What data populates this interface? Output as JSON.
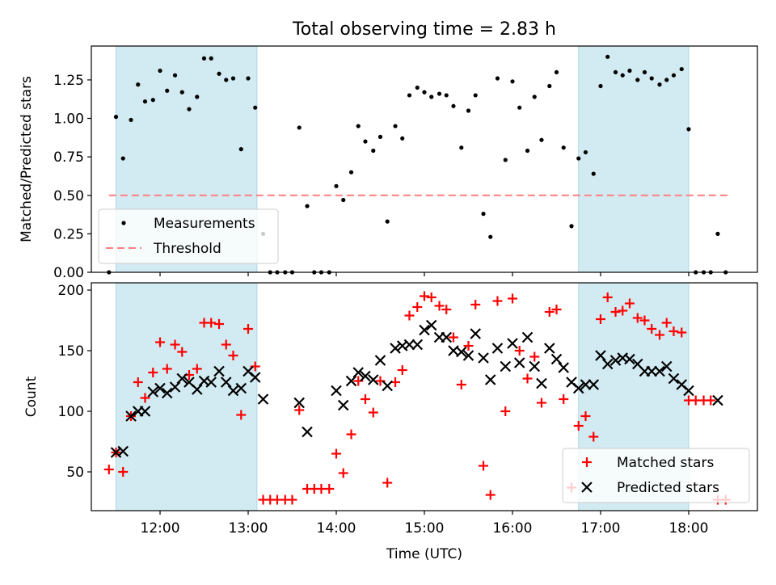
{
  "chart_data": [
    {
      "type": "scatter",
      "title": "Total observing time = 2.83 h",
      "ylabel": "Matched/Predicted stars",
      "xlabel": "",
      "ylim": [
        0,
        1.47
      ],
      "yticks": [
        "0.00",
        "0.25",
        "0.50",
        "0.75",
        "1.00",
        "1.25"
      ],
      "highlight_spans_hours": [
        [
          11.5,
          13.1
        ],
        [
          16.75,
          18.0
        ]
      ],
      "highlight_color": "#add8e6",
      "threshold": {
        "name": "Threshold",
        "value": 0.5,
        "x_range": [
          11.42,
          18.45
        ],
        "color": "#ff7f7f"
      },
      "legend": {
        "placement": "lower-left",
        "entries": [
          "Measurements",
          "Threshold"
        ]
      },
      "series": [
        {
          "name": "Measurements",
          "color": "#000000",
          "marker": "dot",
          "x": [
            11.42,
            11.5,
            11.58,
            11.67,
            11.75,
            11.83,
            11.92,
            12.0,
            12.08,
            12.17,
            12.25,
            12.33,
            12.42,
            12.5,
            12.58,
            12.67,
            12.75,
            12.83,
            12.92,
            13.0,
            13.08,
            13.17,
            13.25,
            13.33,
            13.42,
            13.5,
            13.58,
            13.67,
            13.75,
            13.83,
            13.92,
            14.0,
            14.08,
            14.17,
            14.25,
            14.33,
            14.42,
            14.5,
            14.58,
            14.67,
            14.75,
            14.83,
            14.92,
            15.0,
            15.08,
            15.17,
            15.25,
            15.33,
            15.42,
            15.5,
            15.58,
            15.67,
            15.75,
            15.83,
            15.92,
            16.0,
            16.08,
            16.17,
            16.25,
            16.33,
            16.42,
            16.5,
            16.58,
            16.67,
            16.75,
            16.83,
            16.92,
            17.0,
            17.08,
            17.17,
            17.25,
            17.33,
            17.42,
            17.5,
            17.58,
            17.67,
            17.75,
            17.83,
            17.92,
            18.0,
            18.08,
            18.17,
            18.25,
            18.33,
            18.42
          ],
          "y": [
            0.0,
            1.01,
            0.74,
            0.99,
            1.22,
            1.11,
            1.12,
            1.31,
            1.18,
            1.28,
            1.17,
            1.06,
            1.14,
            1.39,
            1.39,
            1.29,
            1.25,
            1.26,
            0.8,
            1.26,
            1.07,
            0.25,
            0.0,
            0.0,
            0.0,
            0.0,
            0.94,
            0.43,
            0.0,
            0.0,
            0.0,
            0.56,
            0.47,
            0.65,
            0.95,
            0.85,
            0.79,
            0.88,
            0.33,
            0.95,
            0.87,
            1.15,
            1.2,
            1.17,
            1.14,
            1.16,
            1.15,
            1.08,
            0.81,
            1.05,
            1.15,
            0.38,
            0.23,
            1.26,
            0.73,
            1.24,
            1.07,
            0.79,
            1.14,
            0.86,
            1.21,
            1.3,
            0.81,
            0.3,
            0.74,
            0.78,
            0.64,
            1.21,
            1.4,
            1.3,
            1.28,
            1.31,
            1.25,
            1.3,
            1.26,
            1.22,
            1.25,
            1.28,
            1.32,
            0.93,
            0.0,
            0.0,
            0.0,
            0.25,
            0.0
          ]
        }
      ]
    },
    {
      "type": "scatter",
      "title": "",
      "ylabel": "Count",
      "xlabel": "Time (UTC)",
      "ylim": [
        18,
        206
      ],
      "yticks": [
        "50",
        "100",
        "150",
        "200"
      ],
      "xticks": [
        "12:00",
        "13:00",
        "14:00",
        "15:00",
        "16:00",
        "17:00",
        "18:00"
      ],
      "xtick_hours": [
        12,
        13,
        14,
        15,
        16,
        17,
        18
      ],
      "xlim_hours": [
        11.22,
        18.78
      ],
      "highlight_spans_hours": [
        [
          11.5,
          13.1
        ],
        [
          16.75,
          18.0
        ]
      ],
      "highlight_color": "#add8e6",
      "legend": {
        "placement": "lower-right",
        "entries": [
          "Matched stars",
          "Predicted stars"
        ]
      },
      "series": [
        {
          "name": "Matched stars",
          "color": "#ff0000",
          "marker": "plus",
          "x": [
            11.42,
            11.5,
            11.58,
            11.67,
            11.75,
            11.83,
            11.92,
            12.0,
            12.08,
            12.17,
            12.25,
            12.33,
            12.42,
            12.5,
            12.58,
            12.67,
            12.75,
            12.83,
            12.92,
            13.0,
            13.08,
            13.17,
            13.25,
            13.33,
            13.42,
            13.5,
            13.58,
            13.67,
            13.75,
            13.83,
            13.92,
            14.0,
            14.08,
            14.17,
            14.25,
            14.33,
            14.42,
            14.5,
            14.58,
            14.67,
            14.75,
            14.83,
            14.92,
            15.0,
            15.08,
            15.17,
            15.25,
            15.33,
            15.42,
            15.5,
            15.58,
            15.67,
            15.75,
            15.83,
            15.92,
            16.0,
            16.08,
            16.17,
            16.25,
            16.33,
            16.42,
            16.5,
            16.58,
            16.67,
            16.75,
            16.83,
            16.92,
            17.0,
            17.08,
            17.17,
            17.25,
            17.33,
            17.42,
            17.5,
            17.58,
            17.67,
            17.75,
            17.83,
            17.92,
            18.0,
            18.08,
            18.17,
            18.25,
            18.33,
            18.42
          ],
          "y": [
            52,
            66,
            50,
            96,
            124,
            111,
            132,
            157,
            135,
            155,
            149,
            130,
            135,
            173,
            173,
            172,
            155,
            146,
            97,
            168,
            137,
            27,
            27,
            27,
            27,
            27,
            101,
            36,
            36,
            36,
            36,
            65,
            49,
            81,
            125,
            110,
            99,
            125,
            41,
            124,
            134,
            179,
            186,
            195,
            194,
            187,
            184,
            161,
            122,
            154,
            188,
            55,
            31,
            191,
            100,
            193,
            150,
            127,
            145,
            107,
            182,
            184,
            110,
            37,
            88,
            96,
            79,
            176,
            194,
            182,
            183,
            189,
            177,
            175,
            168,
            163,
            173,
            166,
            165,
            109,
            109,
            109,
            109,
            27,
            27
          ]
        },
        {
          "name": "Predicted stars",
          "color": "#000000",
          "marker": "x",
          "x": [
            11.5,
            11.58,
            11.67,
            11.75,
            11.83,
            11.92,
            12.0,
            12.08,
            12.17,
            12.25,
            12.33,
            12.42,
            12.5,
            12.58,
            12.67,
            12.75,
            12.83,
            12.92,
            13.0,
            13.08,
            13.17,
            13.58,
            13.67,
            14.0,
            14.08,
            14.17,
            14.25,
            14.33,
            14.42,
            14.5,
            14.58,
            14.67,
            14.75,
            14.83,
            14.92,
            15.0,
            15.08,
            15.17,
            15.25,
            15.33,
            15.42,
            15.5,
            15.58,
            15.67,
            15.75,
            15.83,
            15.92,
            16.0,
            16.08,
            16.17,
            16.25,
            16.33,
            16.42,
            16.5,
            16.58,
            16.67,
            16.75,
            16.83,
            16.92,
            17.0,
            17.08,
            17.17,
            17.25,
            17.33,
            17.42,
            17.5,
            17.58,
            17.67,
            17.75,
            17.83,
            17.92,
            18.0,
            18.33
          ],
          "y": [
            66,
            67,
            96,
            100,
            100,
            116,
            119,
            115,
            120,
            127,
            124,
            118,
            125,
            124,
            133,
            124,
            117,
            119,
            133,
            128,
            110,
            107,
            83,
            117,
            105,
            125,
            132,
            129,
            126,
            142,
            121,
            152,
            154,
            155,
            155,
            167,
            171,
            161,
            161,
            150,
            149,
            146,
            164,
            144,
            126,
            152,
            137,
            156,
            140,
            161,
            137,
            123,
            152,
            143,
            136,
            124,
            119,
            122,
            122,
            146,
            139,
            142,
            144,
            143,
            139,
            133,
            133,
            133,
            137,
            127,
            122,
            117,
            109
          ]
        }
      ]
    }
  ]
}
